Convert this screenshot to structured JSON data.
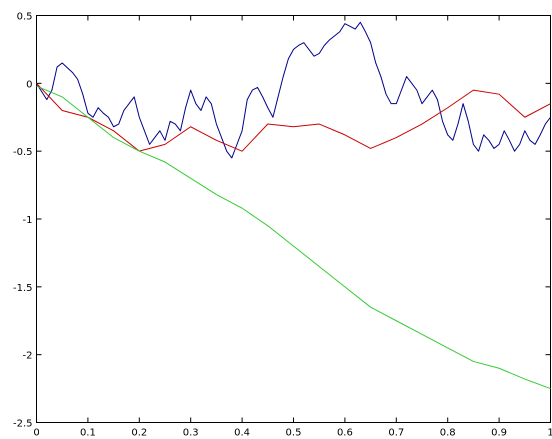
{
  "chart_data": {
    "type": "line",
    "title": "",
    "xlabel": "",
    "ylabel": "",
    "xlim": [
      0,
      1
    ],
    "ylim": [
      -2.5,
      0.5
    ],
    "grid": false,
    "x_ticks": [
      "0",
      "0.1",
      "0.2",
      "0.3",
      "0.4",
      "0.5",
      "0.6",
      "0.7",
      "0.8",
      "0.9",
      "1"
    ],
    "x_tick_values": [
      0,
      0.1,
      0.2,
      0.3,
      0.4,
      0.5,
      0.6,
      0.7,
      0.8,
      0.9,
      1
    ],
    "y_ticks": [
      "0.5",
      "0",
      "-0.5",
      "-1",
      "-1.5",
      "-2",
      "-2.5"
    ],
    "y_tick_values": [
      0.5,
      0,
      -0.5,
      -1,
      -1.5,
      -2,
      -2.5
    ],
    "series": [
      {
        "color": "#00008b",
        "x": [
          0,
          0.02,
          0.03,
          0.04,
          0.05,
          0.07,
          0.08,
          0.09,
          0.1,
          0.11,
          0.12,
          0.13,
          0.14,
          0.15,
          0.16,
          0.17,
          0.18,
          0.19,
          0.2,
          0.21,
          0.22,
          0.23,
          0.24,
          0.25,
          0.26,
          0.27,
          0.28,
          0.29,
          0.3,
          0.31,
          0.32,
          0.33,
          0.34,
          0.35,
          0.36,
          0.37,
          0.38,
          0.39,
          0.4,
          0.41,
          0.42,
          0.43,
          0.44,
          0.45,
          0.46,
          0.47,
          0.48,
          0.49,
          0.5,
          0.51,
          0.52,
          0.53,
          0.54,
          0.55,
          0.56,
          0.57,
          0.58,
          0.59,
          0.6,
          0.61,
          0.62,
          0.63,
          0.64,
          0.65,
          0.66,
          0.67,
          0.68,
          0.69,
          0.7,
          0.71,
          0.72,
          0.73,
          0.74,
          0.75,
          0.76,
          0.77,
          0.78,
          0.79,
          0.8,
          0.81,
          0.82,
          0.83,
          0.84,
          0.85,
          0.86,
          0.87,
          0.88,
          0.89,
          0.9,
          0.91,
          0.92,
          0.93,
          0.94,
          0.95,
          0.96,
          0.97,
          0.98,
          0.99,
          1
        ],
        "y": [
          0,
          -0.12,
          -0.05,
          0.12,
          0.15,
          0.08,
          0.03,
          -0.08,
          -0.22,
          -0.25,
          -0.18,
          -0.22,
          -0.25,
          -0.32,
          -0.3,
          -0.2,
          -0.15,
          -0.1,
          -0.25,
          -0.35,
          -0.45,
          -0.4,
          -0.35,
          -0.42,
          -0.28,
          -0.3,
          -0.35,
          -0.18,
          -0.05,
          -0.15,
          -0.2,
          -0.1,
          -0.15,
          -0.3,
          -0.4,
          -0.5,
          -0.55,
          -0.45,
          -0.35,
          -0.12,
          -0.05,
          -0.03,
          -0.1,
          -0.18,
          -0.25,
          -0.1,
          0.05,
          0.18,
          0.25,
          0.28,
          0.3,
          0.25,
          0.2,
          0.22,
          0.28,
          0.32,
          0.35,
          0.38,
          0.44,
          0.42,
          0.4,
          0.45,
          0.38,
          0.3,
          0.15,
          0.05,
          -0.08,
          -0.15,
          -0.15,
          -0.05,
          0.05,
          0.0,
          -0.05,
          -0.15,
          -0.1,
          -0.05,
          -0.12,
          -0.28,
          -0.38,
          -0.42,
          -0.3,
          -0.15,
          -0.28,
          -0.45,
          -0.5,
          -0.38,
          -0.42,
          -0.48,
          -0.45,
          -0.35,
          -0.42,
          -0.5,
          -0.45,
          -0.35,
          -0.42,
          -0.45,
          -0.38,
          -0.3,
          -0.25
        ]
      },
      {
        "color": "#cc0000",
        "x": [
          0,
          0.05,
          0.1,
          0.15,
          0.2,
          0.25,
          0.3,
          0.35,
          0.4,
          0.45,
          0.5,
          0.55,
          0.6,
          0.65,
          0.7,
          0.75,
          0.8,
          0.85,
          0.9,
          0.95,
          1
        ],
        "y": [
          0,
          -0.2,
          -0.25,
          -0.35,
          -0.5,
          -0.45,
          -0.32,
          -0.42,
          -0.5,
          -0.3,
          -0.32,
          -0.3,
          -0.38,
          -0.48,
          -0.4,
          -0.3,
          -0.18,
          -0.05,
          -0.08,
          -0.25,
          -0.15
        ]
      },
      {
        "color": "#33cc33",
        "x": [
          0,
          0.05,
          0.1,
          0.15,
          0.2,
          0.25,
          0.3,
          0.35,
          0.4,
          0.45,
          0.5,
          0.55,
          0.6,
          0.65,
          0.7,
          0.75,
          0.8,
          0.85,
          0.9,
          0.95,
          1
        ],
        "y": [
          -0.02,
          -0.1,
          -0.25,
          -0.4,
          -0.5,
          -0.58,
          -0.7,
          -0.82,
          -0.92,
          -1.05,
          -1.2,
          -1.35,
          -1.5,
          -1.65,
          -1.75,
          -1.85,
          -1.95,
          -2.05,
          -2.1,
          -2.18,
          -2.25
        ]
      }
    ]
  }
}
